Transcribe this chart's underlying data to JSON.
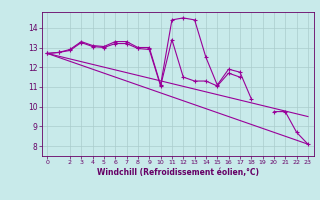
{
  "x": [
    0,
    1,
    2,
    3,
    4,
    5,
    6,
    7,
    8,
    9,
    10,
    11,
    12,
    13,
    14,
    15,
    16,
    17,
    18,
    19,
    20,
    21,
    22,
    23
  ],
  "line1": [
    12.7,
    12.75,
    12.9,
    13.3,
    13.1,
    13.05,
    13.3,
    13.3,
    13.0,
    13.0,
    11.1,
    14.4,
    14.5,
    14.4,
    12.5,
    11.1,
    11.9,
    11.75,
    10.4,
    null,
    9.75,
    9.75,
    8.7,
    8.1
  ],
  "line2": [
    12.7,
    12.75,
    12.85,
    13.25,
    13.05,
    13.0,
    13.2,
    13.2,
    12.95,
    12.9,
    11.05,
    13.4,
    11.5,
    11.3,
    11.3,
    11.05,
    11.7,
    11.5,
    null,
    null,
    null,
    null,
    null,
    null
  ],
  "line3_x": [
    0,
    23
  ],
  "line3_y": [
    12.7,
    8.1
  ],
  "line4_x": [
    0,
    23
  ],
  "line4_y": [
    12.7,
    9.5
  ],
  "bg_color": "#c8eaea",
  "line_color": "#990099",
  "grid_color": "#aacccc",
  "xlabel": "Windchill (Refroidissement éolien,°C)",
  "xlabel_color": "#660066",
  "tick_color": "#660066",
  "ylim": [
    7.5,
    14.8
  ],
  "yticks": [
    8,
    9,
    10,
    11,
    12,
    13,
    14
  ],
  "xticks": [
    0,
    2,
    3,
    4,
    5,
    6,
    7,
    8,
    9,
    10,
    11,
    12,
    13,
    14,
    15,
    16,
    17,
    18,
    19,
    20,
    21,
    22,
    23
  ],
  "xlim": [
    -0.5,
    23.5
  ]
}
